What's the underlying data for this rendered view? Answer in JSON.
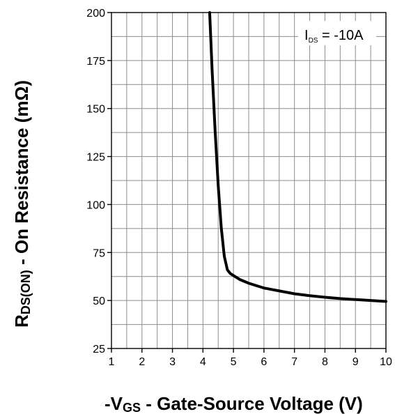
{
  "chart_data": {
    "type": "line",
    "x_ticks": [
      1,
      2,
      3,
      4,
      5,
      6,
      7,
      8,
      9,
      10
    ],
    "y_ticks": [
      25,
      50,
      75,
      100,
      125,
      150,
      175,
      200
    ],
    "xlim": [
      1,
      10
    ],
    "ylim": [
      25,
      200
    ],
    "grid": true,
    "x_minor_step": 0.5,
    "y_minor_step": 12.5,
    "xlabel": {
      "prefix": "-V",
      "subscript": "GS",
      "suffix": " - Gate-Source Voltage (V)"
    },
    "ylabel": {
      "prefix": "R",
      "subscript": "DS(ON)",
      "suffix": " - On Resistance (mΩ)"
    },
    "annotation": {
      "prefix": "I",
      "subscript": "DS",
      "suffix": " = -10A"
    },
    "line_color": "#000000",
    "series": [
      {
        "x": [
          4.22,
          4.3,
          4.4,
          4.5,
          4.6,
          4.7,
          4.8,
          4.9,
          5.0,
          5.2,
          5.5,
          6.0,
          6.5,
          7.0,
          7.5,
          8.0,
          8.5,
          9.0,
          9.5,
          10.0
        ],
        "y": [
          200,
          170,
          138,
          110,
          88,
          73,
          66,
          64,
          63,
          61,
          59,
          56.5,
          55,
          53.5,
          52.5,
          51.7,
          51,
          50.5,
          50,
          49.5
        ]
      }
    ]
  }
}
